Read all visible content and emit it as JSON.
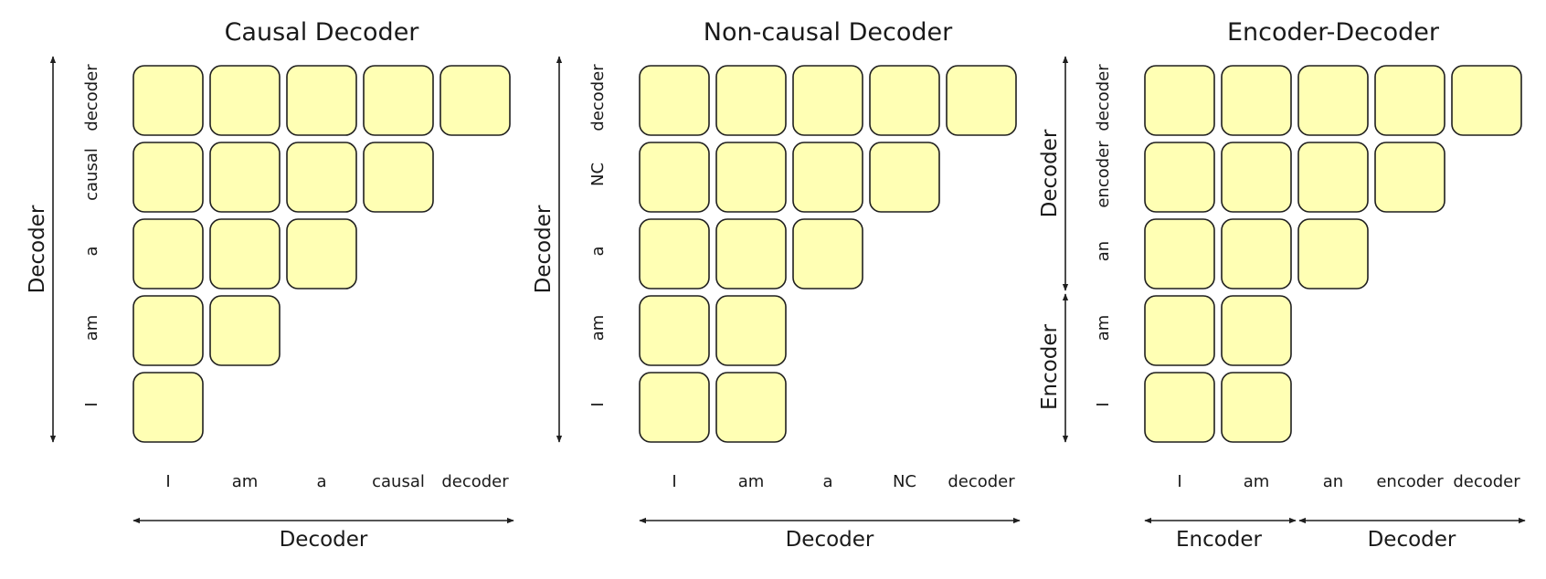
{
  "diagrams": [
    {
      "title": "Causal Decoder",
      "x_tokens": [
        "I",
        "am",
        "a",
        "causal",
        "decoder"
      ],
      "y_tokens": [
        "I",
        "am",
        "a",
        "causal",
        "decoder"
      ],
      "row_lengths": [
        1,
        2,
        3,
        4,
        5
      ],
      "x_axis_labels": [
        "Decoder"
      ],
      "y_axis_labels": [
        "Decoder"
      ]
    },
    {
      "title": "Non-causal Decoder",
      "x_tokens": [
        "I",
        "am",
        "a",
        "NC",
        "decoder"
      ],
      "y_tokens": [
        "I",
        "am",
        "a",
        "NC",
        "decoder"
      ],
      "row_lengths": [
        2,
        2,
        3,
        4,
        5
      ],
      "x_axis_labels": [
        "Decoder"
      ],
      "y_axis_labels": [
        "Decoder"
      ]
    },
    {
      "title": "Encoder-Decoder",
      "x_tokens": [
        "I",
        "am",
        "an",
        "encoder",
        "decoder"
      ],
      "y_tokens": [
        "I",
        "am",
        "an",
        "encoder",
        "decoder"
      ],
      "row_lengths": [
        2,
        2,
        3,
        4,
        5
      ],
      "x_axis_labels": [
        "Encoder",
        "Decoder"
      ],
      "y_axis_labels": [
        "Encoder",
        "Decoder"
      ]
    }
  ],
  "colors": {
    "cell_fill": "#ffffb4",
    "cell_stroke": "#1f1f1f"
  }
}
